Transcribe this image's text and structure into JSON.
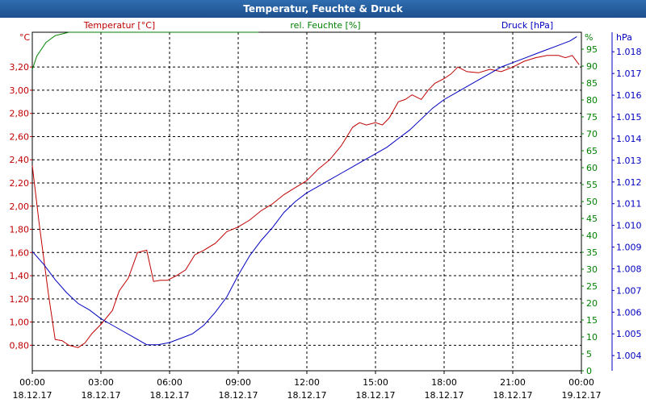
{
  "window": {
    "title": "Temperatur, Feuchte & Druck"
  },
  "colors": {
    "temperature": "#c00000",
    "humidity": "#008000",
    "pressure": "#0000c0",
    "titlebar": "#1d4f8c"
  },
  "chart_data": {
    "type": "line",
    "title": "Temperatur, Feuchte & Druck",
    "grid": true,
    "x_ticks": [
      {
        "time": "00:00",
        "date": "18.12.17"
      },
      {
        "time": "03:00",
        "date": "18.12.17"
      },
      {
        "time": "06:00",
        "date": "18.12.17"
      },
      {
        "time": "09:00",
        "date": "18.12.17"
      },
      {
        "time": "12:00",
        "date": "18.12.17"
      },
      {
        "time": "15:00",
        "date": "18.12.17"
      },
      {
        "time": "18:00",
        "date": "18.12.17"
      },
      {
        "time": "21:00",
        "date": "18.12.17"
      },
      {
        "time": "00:00",
        "date": "19.12.17"
      }
    ],
    "xlim_hours": [
      0,
      24
    ],
    "axes": {
      "temperature": {
        "label": "Temperatur [°C]",
        "unit": "°C",
        "ylim": [
          0.58,
          3.5
        ],
        "ticks": [
          "0,80",
          "1,00",
          "1,20",
          "1,40",
          "1,60",
          "1,80",
          "2,00",
          "2,20",
          "2,40",
          "2,60",
          "2,80",
          "3,00",
          "3,20"
        ]
      },
      "humidity": {
        "label": "rel. Feuchte [%]",
        "unit": "%",
        "ylim": [
          0,
          100
        ],
        "ticks": [
          "0",
          "5",
          "10",
          "15",
          "20",
          "25",
          "30",
          "35",
          "40",
          "45",
          "50",
          "55",
          "60",
          "65",
          "70",
          "75",
          "80",
          "85",
          "90",
          "95"
        ]
      },
      "pressure": {
        "label": "Druck [hPa]",
        "unit": "hPa",
        "ylim": [
          1.0033,
          1.0189
        ],
        "ticks": [
          "1.004",
          "1.005",
          "1.006",
          "1.007",
          "1.008",
          "1.009",
          "1.010",
          "1.011",
          "1.012",
          "1.013",
          "1.014",
          "1.015",
          "1.016",
          "1.017",
          "1.018"
        ]
      }
    },
    "series": [
      {
        "name": "Temperatur [°C]",
        "axis": "temperature",
        "hours": [
          0,
          0.3,
          0.7,
          1.0,
          1.3,
          1.6,
          2.0,
          2.3,
          2.6,
          3.0,
          3.5,
          3.8,
          4.2,
          4.6,
          5.0,
          5.3,
          5.6,
          5.9,
          6.3,
          6.7,
          7.1,
          7.5,
          8.0,
          8.5,
          9.0,
          9.5,
          10.0,
          10.5,
          11.0,
          11.5,
          12.0,
          12.5,
          13.0,
          13.5,
          14.0,
          14.3,
          14.6,
          15.0,
          15.3,
          15.6,
          16.0,
          16.3,
          16.6,
          17.0,
          17.3,
          17.6,
          18.0,
          18.3,
          18.6,
          19.0,
          19.5,
          20.0,
          20.5,
          21.0,
          21.5,
          22.0,
          22.5,
          23.0,
          23.3,
          23.6,
          23.9
        ],
        "values": [
          2.35,
          1.85,
          1.25,
          0.85,
          0.84,
          0.8,
          0.78,
          0.82,
          0.9,
          0.98,
          1.1,
          1.27,
          1.38,
          1.6,
          1.62,
          1.35,
          1.36,
          1.36,
          1.4,
          1.45,
          1.58,
          1.62,
          1.68,
          1.78,
          1.82,
          1.88,
          1.96,
          2.02,
          2.1,
          2.16,
          2.22,
          2.32,
          2.4,
          2.52,
          2.68,
          2.72,
          2.7,
          2.72,
          2.7,
          2.76,
          2.9,
          2.92,
          2.96,
          2.92,
          3.0,
          3.06,
          3.1,
          3.14,
          3.2,
          3.16,
          3.15,
          3.18,
          3.16,
          3.2,
          3.25,
          3.28,
          3.3,
          3.3,
          3.28,
          3.3,
          3.22
        ]
      },
      {
        "name": "rel. Feuchte [%]",
        "axis": "humidity",
        "hours": [
          0,
          0.2,
          0.4,
          0.6,
          0.8,
          1.0,
          1.3,
          1.6,
          2.0,
          3.0,
          5.0,
          7.0,
          9.0,
          9.9
        ],
        "values": [
          89,
          93,
          95,
          97,
          98,
          99,
          99.5,
          100,
          100,
          100,
          100,
          100,
          100,
          100
        ]
      },
      {
        "name": "Druck [hPa]",
        "axis": "pressure",
        "hours": [
          0,
          0.5,
          1.0,
          1.5,
          2.0,
          2.5,
          3.0,
          3.5,
          4.0,
          4.5,
          5.0,
          5.5,
          6.0,
          6.5,
          7.0,
          7.5,
          8.0,
          8.5,
          9.0,
          9.5,
          10.0,
          10.5,
          11.0,
          11.5,
          12.0,
          12.5,
          13.0,
          13.5,
          14.0,
          14.5,
          15.0,
          15.5,
          16.0,
          16.5,
          17.0,
          17.5,
          18.0,
          18.5,
          19.0,
          19.5,
          20.0,
          20.5,
          21.0,
          21.5,
          22.0,
          22.5,
          23.0,
          23.5,
          23.8
        ],
        "values": [
          1.0088,
          1.0082,
          1.0075,
          1.0069,
          1.0064,
          1.0061,
          1.0057,
          1.0054,
          1.0051,
          1.0048,
          1.0045,
          1.0045,
          1.0046,
          1.0048,
          1.005,
          1.0054,
          1.006,
          1.0067,
          1.0077,
          1.0086,
          1.0093,
          1.0099,
          1.0106,
          1.0111,
          1.0115,
          1.0118,
          1.0121,
          1.0124,
          1.0127,
          1.013,
          1.0133,
          1.0136,
          1.014,
          1.0144,
          1.0149,
          1.0154,
          1.0158,
          1.0161,
          1.0164,
          1.0167,
          1.017,
          1.0173,
          1.0175,
          1.0177,
          1.0179,
          1.0181,
          1.0183,
          1.0185,
          1.0187
        ]
      }
    ]
  }
}
